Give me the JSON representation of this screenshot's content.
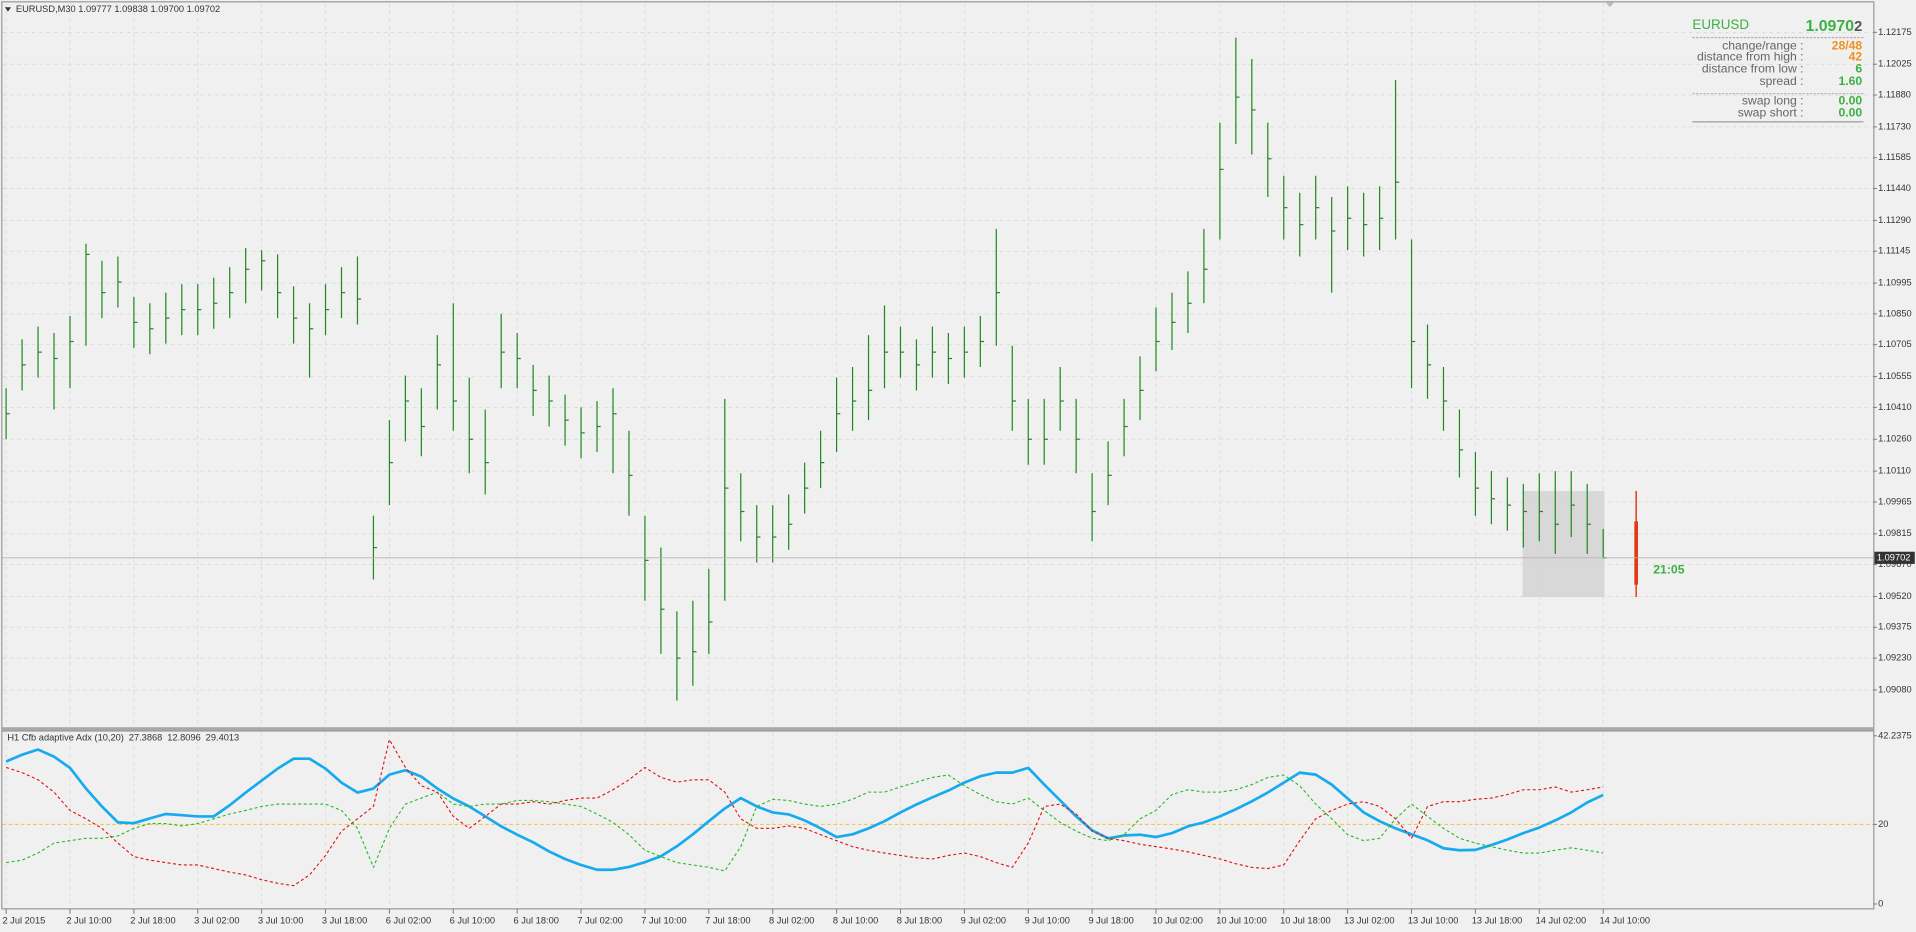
{
  "chart_data": [
    {
      "type": "ohlc",
      "title": "EURUSD,M30 1.09777 1.09838 1.09700 1.09702",
      "color": "#1f8a1f",
      "ylim": [
        1.0891,
        1.1231
      ],
      "yticks": [
        1.12175,
        1.12025,
        {
          "value": 1.1188,
          "label": "1.11880"
        },
        {
          "value": 1.1173,
          "label": "1.11730"
        },
        1.11585,
        {
          "value": 1.1144,
          "label": "1.11440"
        },
        {
          "value": 1.1129,
          "label": "1.11290"
        },
        1.11145,
        1.10995,
        {
          "value": 1.1085,
          "label": "1.10850"
        },
        1.10705,
        1.10555,
        {
          "value": 1.1041,
          "label": "1.10410"
        },
        {
          "value": 1.1026,
          "label": "1.10260"
        },
        {
          "value": 1.1011,
          "label": "1.10110"
        },
        1.09965,
        1.09815,
        {
          "value": 1.0967,
          "label": "1.09670"
        },
        {
          "value": 1.0952,
          "label": "1.09520"
        },
        1.09375,
        {
          "value": 1.0923,
          "label": "1.09230"
        },
        {
          "value": 1.0908,
          "label": "1.09080"
        }
      ],
      "grid": true,
      "categories": [
        "2 Jul 2015",
        null,
        null,
        null,
        "2 Jul 10:00",
        null,
        null,
        null,
        "2 Jul 18:00",
        null,
        null,
        null,
        "3 Jul 02:00",
        null,
        null,
        null,
        "3 Jul 10:00",
        null,
        null,
        null,
        "3 Jul 18:00",
        null,
        null,
        null,
        "6 Jul 02:00",
        null,
        null,
        null,
        "6 Jul 10:00",
        null,
        null,
        null,
        "6 Jul 18:00",
        null,
        null,
        null,
        "7 Jul 02:00",
        null,
        null,
        null,
        "7 Jul 10:00",
        null,
        null,
        null,
        "7 Jul 18:00",
        null,
        null,
        null,
        "8 Jul 02:00",
        null,
        null,
        null,
        "8 Jul 10:00",
        null,
        null,
        null,
        "8 Jul 18:00",
        null,
        null,
        null,
        "9 Jul 02:00",
        null,
        null,
        null,
        "9 Jul 10:00",
        null,
        null,
        null,
        "9 Jul 18:00",
        null,
        null,
        null,
        "10 Jul 02:00",
        null,
        null,
        null,
        "10 Jul 10:00",
        null,
        null,
        null,
        "10 Jul 18:00",
        null,
        null,
        null,
        "13 Jul 02:00",
        null,
        null,
        null,
        "13 Jul 10:00",
        null,
        null,
        null,
        "13 Jul 18:00",
        null,
        null,
        null,
        "14 Jul 02:00",
        null,
        null,
        null,
        "14 Jul 10:00"
      ],
      "high": [
        1.105,
        1.1073,
        1.1079,
        1.1076,
        1.1084,
        1.1118,
        1.111,
        1.1112,
        1.1093,
        1.109,
        1.1095,
        1.1099,
        1.1099,
        1.1102,
        1.1107,
        1.1116,
        1.1115,
        1.1113,
        1.1098,
        1.109,
        1.1099,
        1.1107,
        1.1112,
        1.099,
        1.1035,
        1.1056,
        1.105,
        1.1075,
        1.109,
        1.1055,
        1.104,
        1.1085,
        1.1076,
        1.1061,
        1.1056,
        1.1047,
        1.1041,
        1.1044,
        1.105,
        1.103,
        1.099,
        1.0975,
        1.0945,
        1.095,
        1.0965,
        1.1045,
        1.101,
        1.0995,
        1.0995,
        1.1,
        1.1015,
        1.103,
        1.1055,
        1.106,
        1.1075,
        1.1089,
        1.1079,
        1.1073,
        1.1079,
        1.1076,
        1.1079,
        1.1084,
        1.1125,
        1.107,
        1.1045,
        1.1045,
        1.106,
        1.1045,
        1.101,
        1.1025,
        1.1045,
        1.1065,
        1.1088,
        1.1095,
        1.1105,
        1.1125,
        1.1175,
        1.1215,
        1.1205,
        1.1175,
        1.115,
        1.1142,
        1.115,
        1.114,
        1.1145,
        1.1142,
        1.1145,
        1.1195,
        1.112,
        1.108,
        1.106,
        1.104,
        1.102,
        1.1011,
        1.1008,
        1.1005,
        1.101,
        1.1011,
        1.1011,
        1.1005,
        1.09838
      ],
      "low": [
        1.1026,
        1.1049,
        1.1055,
        1.104,
        1.105,
        1.107,
        1.1083,
        1.1088,
        1.1069,
        1.1066,
        1.1071,
        1.1075,
        1.1075,
        1.1078,
        1.1083,
        1.109,
        1.1096,
        1.1083,
        1.1071,
        1.1055,
        1.1075,
        1.1083,
        1.108,
        1.096,
        1.0995,
        1.1025,
        1.1018,
        1.104,
        1.103,
        1.101,
        1.1,
        1.105,
        1.105,
        1.1037,
        1.1032,
        1.1023,
        1.1017,
        1.102,
        1.101,
        1.099,
        1.095,
        1.0925,
        1.0903,
        1.091,
        1.0925,
        1.095,
        1.0978,
        1.0968,
        1.0968,
        1.0974,
        1.0991,
        1.1003,
        1.102,
        1.103,
        1.1035,
        1.105,
        1.1055,
        1.1049,
        1.1055,
        1.1052,
        1.1055,
        1.106,
        1.107,
        1.103,
        1.1014,
        1.1014,
        1.103,
        1.101,
        1.0978,
        1.0995,
        1.1018,
        1.1035,
        1.1058,
        1.1068,
        1.1076,
        1.109,
        1.112,
        1.1165,
        1.116,
        1.114,
        1.112,
        1.1112,
        1.112,
        1.1095,
        1.1115,
        1.1112,
        1.1115,
        1.112,
        1.105,
        1.1045,
        1.103,
        1.1008,
        1.099,
        1.0986,
        1.0983,
        1.0975,
        1.0978,
        1.0972,
        1.098,
        1.0972,
        1.097
      ],
      "close": [
        1.1038,
        1.1061,
        1.1067,
        1.1064,
        1.1072,
        1.1113,
        1.1095,
        1.11,
        1.1081,
        1.1078,
        1.1083,
        1.1087,
        1.1087,
        1.109,
        1.1095,
        1.1106,
        1.111,
        1.1095,
        1.1083,
        1.1078,
        1.1087,
        1.1095,
        1.1092,
        1.0975,
        1.1015,
        1.1044,
        1.1032,
        1.1061,
        1.1044,
        1.1026,
        1.1015,
        1.1067,
        1.1064,
        1.1049,
        1.1044,
        1.1035,
        1.1029,
        1.1032,
        1.1038,
        1.1009,
        1.0969,
        1.0946,
        1.0923,
        1.0926,
        1.094,
        1.1003,
        1.0992,
        1.098,
        1.098,
        1.0986,
        1.1003,
        1.1015,
        1.1038,
        1.1044,
        1.1049,
        1.1067,
        1.1067,
        1.1061,
        1.1067,
        1.1064,
        1.1067,
        1.1072,
        1.1095,
        1.1044,
        1.1026,
        1.1026,
        1.1044,
        1.1026,
        1.0992,
        1.1009,
        1.1032,
        1.1049,
        1.1072,
        1.1081,
        1.109,
        1.1106,
        1.1153,
        1.1187,
        1.1181,
        1.1158,
        1.1135,
        1.1127,
        1.1135,
        1.1124,
        1.113,
        1.1127,
        1.113,
        1.1147,
        1.1072,
        1.1061,
        1.1044,
        1.1021,
        1.1003,
        1.0998,
        1.0995,
        1.0992,
        1.0992,
        1.0986,
        1.0995,
        1.0986,
        1.09702
      ],
      "bid": {
        "value": 1.09702,
        "label": "1.09702"
      },
      "countdown": "21:05",
      "info_panel": {
        "symbol": "EURUSD",
        "price": "1.0970",
        "price_last_digit": "2",
        "rows": [
          {
            "label": "change/range :",
            "value": "28/48",
            "color": "#f0901e"
          },
          {
            "label": "distance from high :",
            "value": "42",
            "color": "#f0901e"
          },
          {
            "label": "distance from low :",
            "value": "6",
            "color": "#3cb043"
          },
          {
            "label": "spread :",
            "value": "1.60",
            "color": "#3cb043"
          },
          {
            "label": "swap long :",
            "value": "0.00",
            "color": "#3cb043"
          },
          {
            "label": "swap short :",
            "value": "0.00",
            "color": "#3cb043"
          }
        ]
      }
    },
    {
      "type": "line",
      "title": "H1 Cfb adaptive Adx (10,20)",
      "ylim": [
        0,
        42.2375
      ],
      "yticks": [
        42.2375,
        20,
        0
      ],
      "level": 20,
      "level_color": "#f0c040",
      "series": [
        {
          "color": "#16aaee",
          "dashed": false,
          "values": [
            35.8,
            37.5,
            38.8,
            37,
            34.2,
            29,
            24.5,
            20.5,
            20.3,
            21.5,
            22.6,
            22.3,
            22,
            22,
            24.8,
            28,
            31,
            34,
            36.5,
            36.5,
            34,
            30.5,
            28,
            29,
            32.5,
            33.6,
            32,
            29,
            26.5,
            24.5,
            22,
            19.5,
            17.4,
            15.5,
            13.2,
            11.3,
            9.8,
            8.6,
            8.6,
            9.3,
            10.5,
            12,
            14.5,
            17.5,
            20.8,
            24,
            26.6,
            24.5,
            23,
            22.5,
            21,
            19,
            16.8,
            17.5,
            19,
            20.8,
            23,
            25,
            26.8,
            28.5,
            30.5,
            32.1,
            33,
            33,
            34.2,
            30,
            26,
            22,
            18.5,
            16.5,
            17.2,
            17.4,
            16.8,
            17.8,
            19.5,
            20.5,
            22,
            23.8,
            25.8,
            28,
            30.5,
            33,
            32.5,
            30,
            26.5,
            23,
            20.8,
            19,
            17.5,
            16,
            14,
            13.5,
            13.6,
            14.8,
            16.2,
            17.8,
            19.2,
            21,
            23,
            25.5,
            27.3868
          ]
        },
        {
          "color": "#22bb22",
          "dashed": true,
          "values": [
            10.4,
            11,
            12.8,
            15.3,
            15.9,
            16.5,
            16.5,
            17.1,
            19,
            20.2,
            20.2,
            19.6,
            20.2,
            21.4,
            22.6,
            23.5,
            24.5,
            25.1,
            25.1,
            25.1,
            25.1,
            23.5,
            19,
            9.2,
            19,
            25.1,
            26.6,
            28.1,
            25.1,
            24.5,
            25.1,
            25.1,
            26,
            26,
            25.7,
            25.1,
            24.5,
            22.6,
            20.5,
            17.4,
            13.5,
            11.9,
            10.4,
            9.8,
            9.2,
            8.3,
            14.4,
            24.5,
            26.3,
            26,
            25.1,
            24.5,
            25.1,
            26.3,
            28.1,
            28.1,
            29.4,
            30.6,
            31.8,
            32.4,
            29.7,
            27.5,
            25.7,
            25.1,
            26.6,
            23.5,
            20.5,
            18.3,
            16.5,
            15.9,
            17.4,
            21.4,
            23.5,
            27.5,
            28.7,
            28.1,
            28.1,
            28.7,
            30,
            31.8,
            32.4,
            29.7,
            25.1,
            21.4,
            17.4,
            15.9,
            16.5,
            21.4,
            25.1,
            22,
            19,
            16.5,
            15.3,
            14.4,
            13.5,
            12.8,
            12.8,
            13.5,
            14.1,
            13.5,
            12.8096
          ]
        },
        {
          "color": "#e01010",
          "dashed": true,
          "values": [
            34.3,
            33,
            31.2,
            28.1,
            23.5,
            21.4,
            19,
            15.3,
            11.9,
            11,
            10.4,
            9.8,
            9.8,
            8.9,
            8,
            7.3,
            6.1,
            5.2,
            4.6,
            7.3,
            12.2,
            18.3,
            21.4,
            24.5,
            41.3,
            34.3,
            29.7,
            28.1,
            22,
            19,
            22,
            25.1,
            25.1,
            25.7,
            25.1,
            26,
            26.6,
            26.6,
            28.7,
            31.2,
            34.3,
            31.8,
            30.6,
            31.2,
            31.2,
            28.1,
            21.4,
            19,
            19,
            19.6,
            19,
            17.4,
            15.9,
            14.4,
            13.5,
            12.8,
            12.2,
            11.6,
            11.3,
            12.2,
            12.8,
            11.9,
            10.4,
            9.2,
            15.3,
            24.5,
            25.1,
            22.6,
            18.3,
            16.5,
            15.9,
            15,
            14.4,
            13.8,
            13.1,
            12.2,
            11.3,
            10.1,
            9.2,
            8.9,
            9.8,
            15.9,
            21.4,
            23.5,
            25.1,
            25.7,
            24.5,
            21.4,
            16.5,
            24.5,
            25.7,
            25.7,
            26.3,
            26.6,
            27.5,
            28.7,
            28.7,
            29.4,
            28.1,
            28.7,
            29.4013
          ]
        }
      ]
    }
  ]
}
